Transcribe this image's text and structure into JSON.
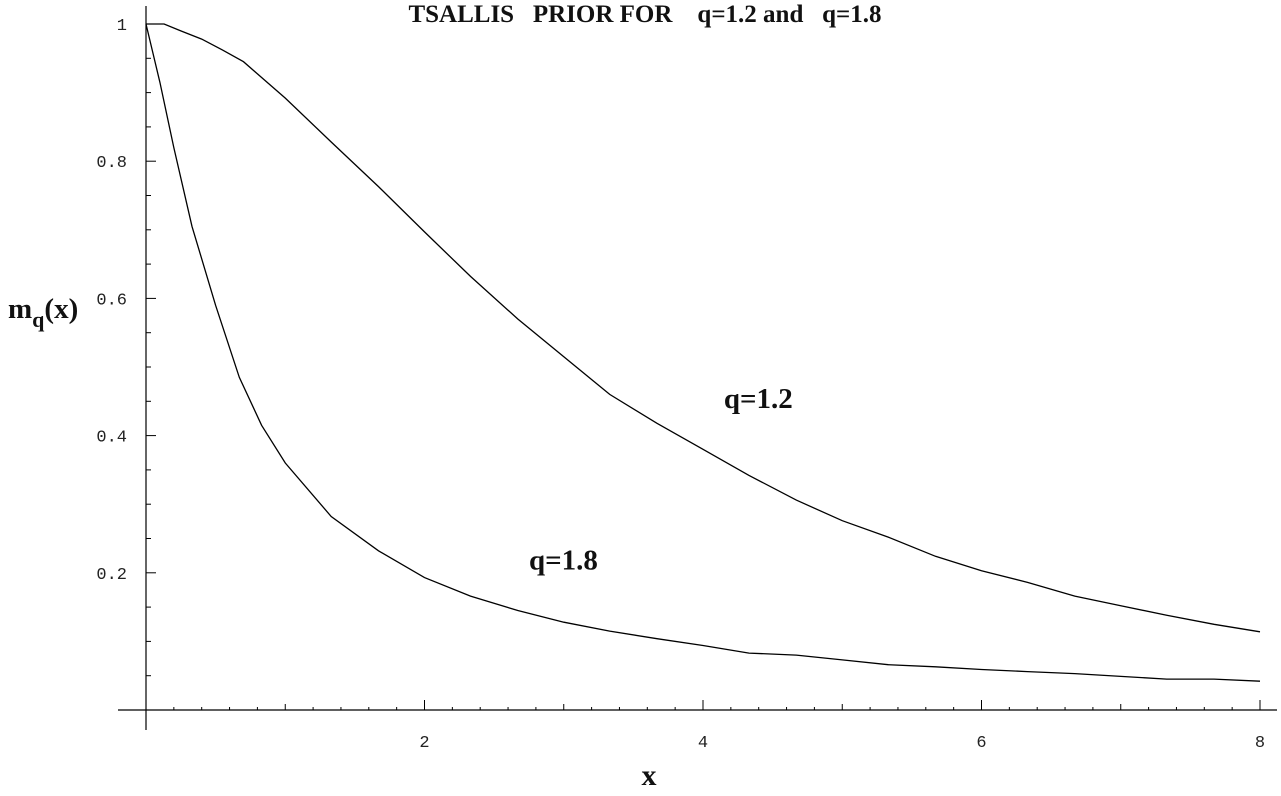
{
  "chart_data": {
    "type": "line",
    "title": "TSALLIS   PRIOR FOR    q=1.2 and   q=1.8",
    "xlabel": "x",
    "ylabel": "m",
    "ylabel_sub": "q",
    "ylabel_arg": "(x)",
    "xlim": [
      0,
      8
    ],
    "ylim": [
      0,
      1
    ],
    "xticks": [
      2,
      4,
      6,
      8
    ],
    "yticks": [
      0.2,
      0.4,
      0.6,
      0.8,
      1
    ],
    "xtick_labels": [
      "2",
      "4",
      "6",
      "8"
    ],
    "ytick_labels": [
      "0.2",
      "0.4",
      "0.6",
      "0.8",
      "1"
    ],
    "grid": false,
    "series": [
      {
        "name": "q=1.2",
        "x": [
          0,
          0.13,
          0.25,
          0.4,
          0.55,
          0.7,
          1.0,
          1.33,
          1.67,
          2.0,
          2.33,
          2.67,
          3.0,
          3.33,
          3.67,
          4.0,
          4.33,
          4.67,
          5.0,
          5.33,
          5.67,
          6.0,
          6.33,
          6.67,
          7.0,
          7.33,
          7.67,
          8.0
        ],
        "y": [
          1.0,
          1.0,
          0.99,
          0.978,
          0.962,
          0.945,
          0.892,
          0.828,
          0.763,
          0.697,
          0.632,
          0.57,
          0.515,
          0.46,
          0.418,
          0.38,
          0.342,
          0.306,
          0.276,
          0.252,
          0.224,
          0.203,
          0.186,
          0.166,
          0.152,
          0.138,
          0.125,
          0.114
        ]
      },
      {
        "name": "q=1.8",
        "x": [
          0,
          0.1,
          0.2,
          0.33,
          0.5,
          0.67,
          0.83,
          1.0,
          1.33,
          1.67,
          2.0,
          2.33,
          2.67,
          3.0,
          3.33,
          3.67,
          4.0,
          4.33,
          4.67,
          5.0,
          5.33,
          5.67,
          6.0,
          6.33,
          6.67,
          7.0,
          7.33,
          7.67,
          8.0
        ],
        "y": [
          1.0,
          0.915,
          0.82,
          0.705,
          0.59,
          0.485,
          0.415,
          0.36,
          0.282,
          0.232,
          0.193,
          0.166,
          0.145,
          0.128,
          0.115,
          0.104,
          0.094,
          0.083,
          0.08,
          0.073,
          0.066,
          0.063,
          0.059,
          0.056,
          0.053,
          0.049,
          0.045,
          0.045,
          0.042
        ]
      }
    ],
    "annotations": [
      {
        "text": "q=1.2",
        "x": 4.15,
        "y": 0.44
      },
      {
        "text": "q=1.8",
        "x": 2.75,
        "y": 0.205
      }
    ]
  }
}
